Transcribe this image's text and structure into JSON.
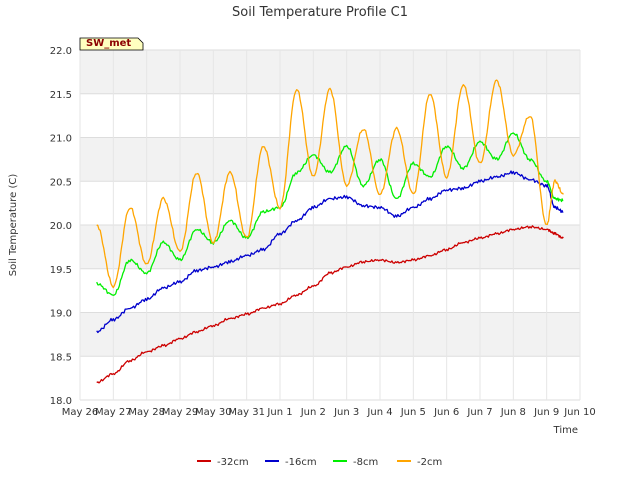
{
  "chart_data": {
    "type": "line",
    "title": "Soil Temperature Profile C1",
    "xlabel": "Time",
    "ylabel": "Soil Temperature (C)",
    "badge": "SW_met",
    "xlim": [
      0,
      15
    ],
    "ylim": [
      18.0,
      22.0
    ],
    "x_ticks": [
      "May 26",
      "May 27",
      "May 28",
      "May 29",
      "May 30",
      "May 31",
      "Jun 1",
      "Jun 2",
      "Jun 3",
      "Jun 4",
      "Jun 5",
      "Jun 6",
      "Jun 7",
      "Jun 8",
      "Jun 9",
      "Jun 10"
    ],
    "y_ticks": [
      "18.0",
      "18.5",
      "19.0",
      "19.5",
      "20.0",
      "20.5",
      "21.0",
      "21.5",
      "22.0"
    ],
    "y_tick_values": [
      18.0,
      18.5,
      19.0,
      19.5,
      20.0,
      20.5,
      21.0,
      21.5,
      22.0
    ],
    "grid": true,
    "legend_position": "bottom",
    "x": [
      0.5,
      1.0,
      1.5,
      2.0,
      2.5,
      3.0,
      3.5,
      4.0,
      4.5,
      5.0,
      5.5,
      6.0,
      6.5,
      7.0,
      7.5,
      8.0,
      8.5,
      9.0,
      9.5,
      10.0,
      10.5,
      11.0,
      11.5,
      12.0,
      12.5,
      13.0,
      13.5,
      14.0,
      14.25,
      14.5
    ],
    "series": [
      {
        "name": "-32cm",
        "color": "#cc0000",
        "values": [
          18.2,
          18.3,
          18.45,
          18.55,
          18.62,
          18.7,
          18.78,
          18.85,
          18.93,
          18.98,
          19.05,
          19.1,
          19.2,
          19.3,
          19.45,
          19.52,
          19.58,
          19.6,
          19.57,
          19.6,
          19.65,
          19.72,
          19.8,
          19.85,
          19.9,
          19.95,
          19.98,
          19.95,
          19.9,
          19.85
        ]
      },
      {
        "name": "-16cm",
        "color": "#0000cc",
        "values": [
          18.78,
          18.92,
          19.05,
          19.15,
          19.28,
          19.35,
          19.48,
          19.52,
          19.58,
          19.65,
          19.72,
          19.9,
          20.05,
          20.2,
          20.3,
          20.32,
          20.22,
          20.2,
          20.1,
          20.2,
          20.3,
          20.4,
          20.42,
          20.5,
          20.55,
          20.6,
          20.52,
          20.45,
          20.2,
          20.15
        ]
      },
      {
        "name": "-8cm",
        "color": "#00ee00",
        "values": [
          19.33,
          19.2,
          19.6,
          19.45,
          19.8,
          19.6,
          19.95,
          19.8,
          20.05,
          19.85,
          20.15,
          20.2,
          20.6,
          20.8,
          20.6,
          20.9,
          20.45,
          20.75,
          20.3,
          20.7,
          20.55,
          20.9,
          20.65,
          20.95,
          20.75,
          21.05,
          20.75,
          20.5,
          20.3,
          20.28
        ]
      },
      {
        "name": "-2cm",
        "color": "#ffa500",
        "values": [
          20.0,
          19.3,
          20.2,
          19.55,
          20.3,
          19.7,
          20.6,
          19.8,
          20.6,
          19.85,
          20.9,
          20.2,
          21.55,
          20.55,
          21.55,
          20.45,
          21.1,
          20.35,
          21.1,
          20.35,
          21.5,
          20.55,
          21.6,
          20.7,
          21.65,
          20.8,
          21.25,
          20.0,
          20.5,
          20.35
        ]
      }
    ]
  }
}
